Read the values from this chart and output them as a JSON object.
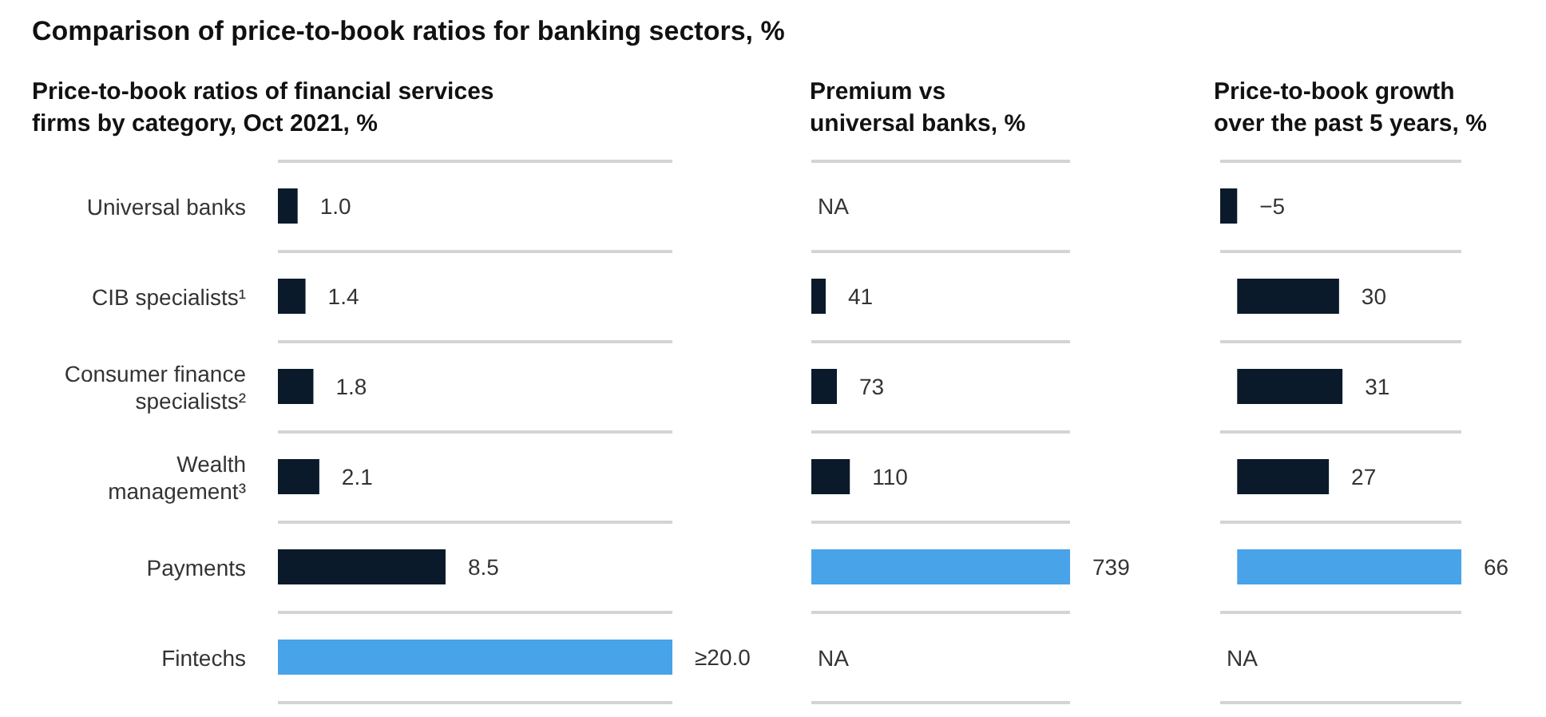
{
  "chart_data": [
    {
      "type": "bar",
      "orientation": "horizontal",
      "title": "Comparison of price-to-book ratios for banking sectors, %",
      "subtitle": "Price-to-book ratios of financial services firms by category, Oct 2021, %",
      "categories": [
        "Universal banks",
        "CIB specialists¹",
        "Consumer finance specialists²",
        "Wealth management³",
        "Payments",
        "Fintechs"
      ],
      "values": [
        1.0,
        1.4,
        1.8,
        2.1,
        8.5,
        20.0
      ],
      "value_labels": [
        "1.0",
        "1.4",
        "1.8",
        "2.1",
        "8.5",
        "≥20.0"
      ],
      "colors": [
        "#0b1a2a",
        "#0b1a2a",
        "#0b1a2a",
        "#0b1a2a",
        "#0b1a2a",
        "#48a3e8"
      ],
      "grid": "y",
      "tick_labels": "y"
    },
    {
      "type": "bar",
      "orientation": "horizontal",
      "subtitle": "Premium vs universal banks, %",
      "categories": [
        null,
        null,
        null,
        null,
        null,
        null
      ],
      "values": [
        null,
        41,
        73,
        110,
        739,
        null
      ],
      "value_labels": [
        "NA",
        "41",
        "73",
        "110",
        "739",
        "NA"
      ],
      "colors": [
        "#0b1a2a",
        "#0b1a2a",
        "#0b1a2a",
        "#0b1a2a",
        "#48a3e8",
        "#0b1a2a"
      ],
      "grid": "y",
      "tick_labels": false
    },
    {
      "type": "bar",
      "orientation": "horizontal",
      "subtitle": "Price-to-book growth over the past 5 years, %",
      "categories": [
        null,
        null,
        null,
        null,
        null,
        null
      ],
      "values": [
        -5,
        30,
        31,
        27,
        66,
        null
      ],
      "value_labels": [
        "−5",
        "30",
        "31",
        "27",
        "66",
        "NA"
      ],
      "colors": [
        "#0b1a2a",
        "#0b1a2a",
        "#0b1a2a",
        "#0b1a2a",
        "#48a3e8",
        "#0b1a2a"
      ],
      "grid": "y",
      "tick_labels": false
    }
  ]
}
